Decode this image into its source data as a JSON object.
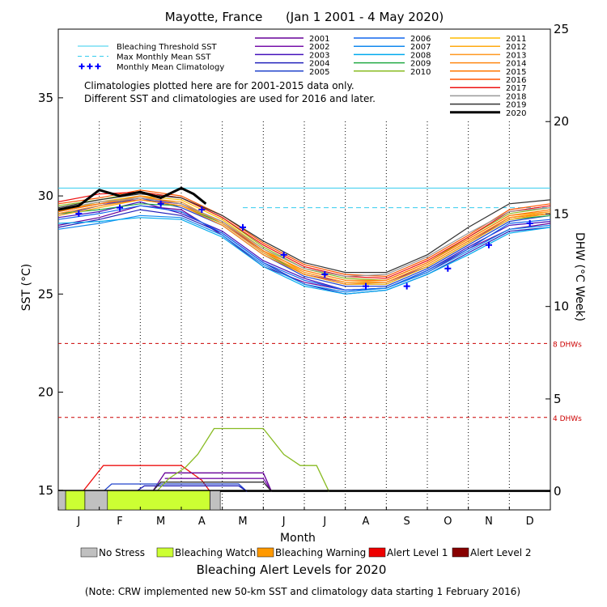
{
  "chart_data": {
    "type": "line",
    "title": "Mayotte, France      (Jan 1 2001 - 4 May 2020)",
    "xlabel": "Month",
    "ylabel_left": "SST (°C)",
    "ylabel_right": "DHW (°C Week)",
    "months": [
      "J",
      "F",
      "M",
      "A",
      "M",
      "J",
      "J",
      "A",
      "S",
      "O",
      "N",
      "D"
    ],
    "left_axis": {
      "ylim": [
        14,
        38.5
      ],
      "ticks": [
        15,
        20,
        25,
        30,
        35
      ]
    },
    "right_axis": {
      "ylim": [
        -1,
        25
      ],
      "ticks": [
        0,
        5,
        10,
        15,
        20,
        25
      ]
    },
    "thresholds": {
      "bleaching_threshold_sst": 30.4,
      "max_monthly_mean_sst": 29.4,
      "dhw_8": 8,
      "dhw_4": 4,
      "dhw_8_label": "8 DHWs",
      "dhw_4_label": "4 DHWs"
    },
    "legend_left": [
      {
        "label": "Bleaching Threshold SST",
        "color": "#33ccee",
        "style": "solid"
      },
      {
        "label": "Max Monthly Mean SST",
        "color": "#33ccee",
        "style": "dashed"
      },
      {
        "label": "Monthly Mean Climatology",
        "color": "#0000ff",
        "style": "plus"
      }
    ],
    "notes": [
      "Climatologies plotted here are for 2001-2015 data only.",
      "Different SST and climatologies are used for 2016 and later."
    ],
    "year_legend": [
      {
        "name": "2001",
        "color": "#660099"
      },
      {
        "name": "2002",
        "color": "#7711aa"
      },
      {
        "name": "2003",
        "color": "#4411bb"
      },
      {
        "name": "2004",
        "color": "#2222bb"
      },
      {
        "name": "2005",
        "color": "#2244cc"
      },
      {
        "name": "2006",
        "color": "#1166ee"
      },
      {
        "name": "2007",
        "color": "#1188ee"
      },
      {
        "name": "2008",
        "color": "#00aaee"
      },
      {
        "name": "2009",
        "color": "#22aa44"
      },
      {
        "name": "2010",
        "color": "#88bb22"
      },
      {
        "name": "2011",
        "color": "#ffbb00"
      },
      {
        "name": "2012",
        "color": "#ffaa11"
      },
      {
        "name": "2013",
        "color": "#ff9922"
      },
      {
        "name": "2014",
        "color": "#ff8811"
      },
      {
        "name": "2015",
        "color": "#ff7700"
      },
      {
        "name": "2016",
        "color": "#ff5500"
      },
      {
        "name": "2017",
        "color": "#ee1111"
      },
      {
        "name": "2018",
        "color": "#999999"
      },
      {
        "name": "2019",
        "color": "#333333"
      },
      {
        "name": "2020",
        "color": "#000000",
        "bold": true
      }
    ],
    "climatology": [
      29.1,
      29.4,
      29.6,
      29.3,
      28.4,
      27.0,
      26.0,
      25.4,
      25.4,
      26.3,
      27.5,
      28.6
    ],
    "sst_series": [
      {
        "name": "2001",
        "x": [
          0,
          1,
          2,
          3,
          4,
          5,
          6,
          7,
          8,
          9,
          10,
          11,
          12
        ],
        "y": [
          28.5,
          28.9,
          29.5,
          29.3,
          28.0,
          26.4,
          25.6,
          25.2,
          25.3,
          26.1,
          27.3,
          28.3,
          28.6
        ]
      },
      {
        "name": "2002",
        "x": [
          0,
          1,
          2,
          3,
          4,
          5,
          6,
          7,
          8,
          9,
          10,
          11,
          12
        ],
        "y": [
          29.2,
          29.6,
          29.8,
          29.6,
          28.6,
          27.2,
          26.0,
          25.6,
          25.6,
          26.4,
          27.6,
          28.9,
          29.1
        ]
      },
      {
        "name": "2003",
        "x": [
          0,
          1,
          2,
          3,
          4,
          5,
          6,
          7,
          8,
          9,
          10,
          11,
          12
        ],
        "y": [
          28.9,
          29.2,
          29.7,
          29.1,
          28.2,
          26.7,
          25.8,
          25.2,
          25.3,
          26.2,
          27.4,
          28.5,
          28.7
        ]
      },
      {
        "name": "2004",
        "x": [
          0,
          1,
          2,
          3,
          4,
          5,
          6,
          7,
          8,
          9,
          10,
          11,
          12
        ],
        "y": [
          28.4,
          28.8,
          29.3,
          29.0,
          28.1,
          26.6,
          25.5,
          25.0,
          25.2,
          26.0,
          27.1,
          28.2,
          28.4
        ]
      },
      {
        "name": "2005",
        "x": [
          0,
          1,
          2,
          3,
          4,
          5,
          6,
          7,
          8,
          9,
          10,
          11,
          12
        ],
        "y": [
          29.0,
          29.5,
          29.9,
          29.4,
          28.5,
          27.0,
          25.9,
          25.4,
          25.4,
          26.3,
          27.5,
          28.7,
          29.0
        ]
      },
      {
        "name": "2006",
        "x": [
          0,
          1,
          2,
          3,
          4,
          5,
          6,
          7,
          8,
          9,
          10,
          11,
          12
        ],
        "y": [
          28.8,
          29.1,
          29.5,
          29.2,
          28.1,
          26.6,
          25.7,
          25.2,
          25.3,
          26.2,
          27.3,
          28.6,
          28.8
        ]
      },
      {
        "name": "2007",
        "x": [
          0,
          1,
          2,
          3,
          4,
          5,
          6,
          7,
          8,
          9,
          10,
          11,
          12
        ],
        "y": [
          28.3,
          28.6,
          29.0,
          28.9,
          28.0,
          26.5,
          25.5,
          25.1,
          25.3,
          26.1,
          27.2,
          28.3,
          28.5
        ]
      },
      {
        "name": "2008",
        "x": [
          0,
          1,
          2,
          3,
          4,
          5,
          6,
          7,
          8,
          9,
          10,
          11,
          12
        ],
        "y": [
          28.6,
          28.7,
          28.9,
          28.8,
          27.9,
          26.4,
          25.4,
          25.0,
          25.2,
          26.0,
          27.0,
          28.1,
          28.4
        ]
      },
      {
        "name": "2009",
        "x": [
          0,
          1,
          2,
          3,
          4,
          5,
          6,
          7,
          8,
          9,
          10,
          11,
          12
        ],
        "y": [
          29.1,
          29.3,
          29.6,
          29.5,
          28.6,
          27.1,
          26.0,
          25.5,
          25.5,
          26.4,
          27.6,
          28.8,
          29.0
        ]
      },
      {
        "name": "2010",
        "x": [
          0,
          1,
          2,
          3,
          4,
          5,
          6,
          7,
          8,
          9,
          10,
          11,
          12
        ],
        "y": [
          29.5,
          29.8,
          30.2,
          29.9,
          28.9,
          27.4,
          26.3,
          25.8,
          25.7,
          26.6,
          27.9,
          29.1,
          29.4
        ]
      },
      {
        "name": "2011",
        "x": [
          0,
          1,
          2,
          3,
          4,
          5,
          6,
          7,
          8,
          9,
          10,
          11,
          12
        ],
        "y": [
          29.2,
          29.7,
          30.0,
          29.8,
          28.8,
          27.3,
          26.1,
          25.6,
          25.6,
          26.5,
          27.7,
          28.9,
          29.2
        ]
      },
      {
        "name": "2012",
        "x": [
          0,
          1,
          2,
          3,
          4,
          5,
          6,
          7,
          8,
          9,
          10,
          11,
          12
        ],
        "y": [
          29.0,
          29.4,
          29.8,
          29.5,
          28.7,
          27.2,
          26.0,
          25.5,
          25.5,
          26.4,
          27.6,
          28.8,
          29.1
        ]
      },
      {
        "name": "2013",
        "x": [
          0,
          1,
          2,
          3,
          4,
          5,
          6,
          7,
          8,
          9,
          10,
          11,
          12
        ],
        "y": [
          29.3,
          29.6,
          29.9,
          29.7,
          28.6,
          27.1,
          26.1,
          25.6,
          25.7,
          26.6,
          27.8,
          29.0,
          29.2
        ]
      },
      {
        "name": "2014",
        "x": [
          0,
          1,
          2,
          3,
          4,
          5,
          6,
          7,
          8,
          9,
          10,
          11,
          12
        ],
        "y": [
          29.1,
          29.5,
          29.8,
          29.5,
          28.5,
          27.0,
          26.0,
          25.5,
          25.6,
          26.5,
          27.7,
          28.9,
          29.1
        ]
      },
      {
        "name": "2015",
        "x": [
          0,
          1,
          2,
          3,
          4,
          5,
          6,
          7,
          8,
          9,
          10,
          11,
          12
        ],
        "y": [
          29.2,
          29.6,
          30.0,
          29.6,
          28.7,
          27.2,
          26.2,
          25.7,
          25.7,
          26.6,
          27.8,
          29.0,
          29.3
        ]
      },
      {
        "name": "2016",
        "x": [
          0,
          1,
          2,
          3,
          4,
          5,
          6,
          7,
          8,
          9,
          10,
          11,
          12
        ],
        "y": [
          29.6,
          29.9,
          30.3,
          30.0,
          29.0,
          27.6,
          26.5,
          26.0,
          25.9,
          26.8,
          28.0,
          29.3,
          29.6
        ]
      },
      {
        "name": "2017",
        "x": [
          0,
          1,
          2,
          3,
          4,
          5,
          6,
          7,
          8,
          9,
          10,
          11,
          12
        ],
        "y": [
          29.7,
          30.1,
          30.2,
          29.9,
          28.9,
          27.5,
          26.4,
          25.9,
          25.8,
          26.7,
          27.9,
          29.2,
          29.5
        ]
      },
      {
        "name": "2018",
        "x": [
          0,
          1,
          2,
          3,
          4,
          5,
          6,
          7,
          8,
          9,
          10,
          11,
          12
        ],
        "y": [
          29.3,
          29.7,
          29.9,
          29.6,
          28.7,
          27.3,
          26.3,
          25.9,
          26.0,
          26.9,
          28.1,
          29.2,
          29.4
        ]
      },
      {
        "name": "2019",
        "x": [
          0,
          1,
          2,
          3,
          4,
          5,
          6,
          7,
          8,
          9,
          10,
          11,
          12
        ],
        "y": [
          29.4,
          29.8,
          30.1,
          29.9,
          29.0,
          27.7,
          26.6,
          26.1,
          26.1,
          27.0,
          28.4,
          29.6,
          29.8
        ]
      },
      {
        "name": "2020",
        "x": [
          0,
          0.5,
          1,
          1.5,
          2,
          2.5,
          3,
          3.3,
          3.6
        ],
        "y": [
          29.3,
          29.5,
          30.3,
          30.0,
          30.2,
          29.9,
          30.4,
          30.1,
          29.6
        ]
      }
    ],
    "dhw_series": [
      {
        "name": "2017",
        "x": [
          0.6,
          1.1,
          3.0,
          3.5,
          3.7
        ],
        "y": [
          0,
          1.4,
          1.4,
          0.6,
          0
        ]
      },
      {
        "name": "2001",
        "x": [
          2.3,
          2.6,
          5.0,
          5.2
        ],
        "y": [
          0,
          1.0,
          1.0,
          0
        ]
      },
      {
        "name": "2002",
        "x": [
          2.6,
          5.0,
          5.2
        ],
        "y": [
          0.7,
          0.7,
          0
        ]
      },
      {
        "name": "2005",
        "x": [
          1.1,
          1.3,
          4.4,
          4.6
        ],
        "y": [
          0,
          0.4,
          0.4,
          0
        ]
      },
      {
        "name": "2004",
        "x": [
          1.9,
          2.1,
          4.4,
          4.6
        ],
        "y": [
          0,
          0.3,
          0.3,
          0
        ]
      },
      {
        "name": "2019",
        "x": [
          2.3,
          2.5,
          5.0,
          5.2
        ],
        "y": [
          0,
          0.5,
          0.5,
          0
        ]
      },
      {
        "name": "2010",
        "x": [
          2.4,
          2.7,
          3.1,
          3.4,
          3.8,
          5.0,
          5.5,
          5.9,
          6.3,
          6.6
        ],
        "y": [
          0,
          0.7,
          1.3,
          2.0,
          3.4,
          3.4,
          2.0,
          1.4,
          1.4,
          0
        ]
      }
    ],
    "alert_levels_2020": [
      {
        "from": 0,
        "to": 0.18,
        "level": "No Stress"
      },
      {
        "from": 0.18,
        "to": 0.65,
        "level": "Bleaching Watch"
      },
      {
        "from": 0.65,
        "to": 1.2,
        "level": "No Stress"
      },
      {
        "from": 1.2,
        "to": 3.7,
        "level": "Bleaching Watch"
      },
      {
        "from": 3.7,
        "to": 3.95,
        "level": "No Stress"
      }
    ],
    "alert_legend": [
      {
        "label": "No Stress",
        "color": "#c0c0c0"
      },
      {
        "label": "Bleaching Watch",
        "color": "#ccff33"
      },
      {
        "label": "Bleaching Warning",
        "color": "#ff9900"
      },
      {
        "label": "Alert Level 1",
        "color": "#ee0000"
      },
      {
        "label": "Alert Level 2",
        "color": "#880000"
      }
    ],
    "alert_title": "Bleaching Alert Levels for 2020",
    "footnote": "(Note: CRW implemented new 50-km SST and climatology data starting 1 February 2016)"
  }
}
